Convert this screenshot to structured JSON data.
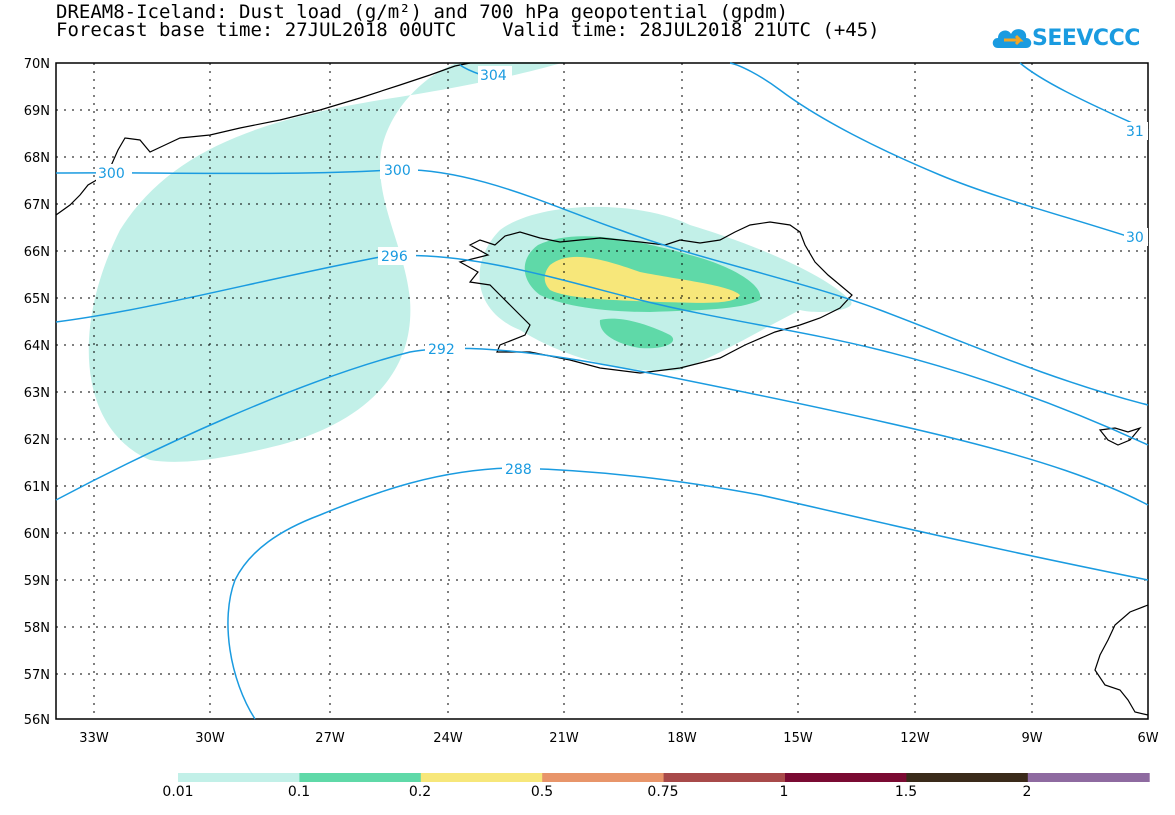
{
  "header": {
    "title_line1": "DREAM8-Iceland: Dust load (g/m²) and 700 hPa geopotential (gpdm)",
    "title_line2": "Forecast base time: 27JUL2018 00UTC    Valid time: 28JUL2018 21UTC (+45)"
  },
  "logo": {
    "text": "SEEVCCC",
    "icon": "cloud-logo-icon",
    "color": "#1a9be0"
  },
  "map": {
    "lat_labels": [
      "70N",
      "69N",
      "68N",
      "67N",
      "66N",
      "65N",
      "64N",
      "63N",
      "62N",
      "61N",
      "60N",
      "59N",
      "58N",
      "57N",
      "56N"
    ],
    "lon_labels": [
      "33W",
      "30W",
      "27W",
      "24W",
      "21W",
      "18W",
      "15W",
      "12W",
      "9W",
      "6W"
    ],
    "contour_labels": [
      "304",
      "300",
      "300",
      "296",
      "292",
      "288",
      "31",
      "30"
    ],
    "contour_color": "#1a9be0"
  },
  "colorbar": {
    "colors": [
      "#c2f0e8",
      "#5fd9a8",
      "#f7e77a",
      "#e8956a",
      "#a84a4a",
      "#7a0a32",
      "#3a2a1a",
      "#8e6aa0"
    ],
    "labels": [
      "0.01",
      "0.1",
      "0.2",
      "0.5",
      "0.75",
      "1",
      "1.5",
      "2"
    ]
  }
}
